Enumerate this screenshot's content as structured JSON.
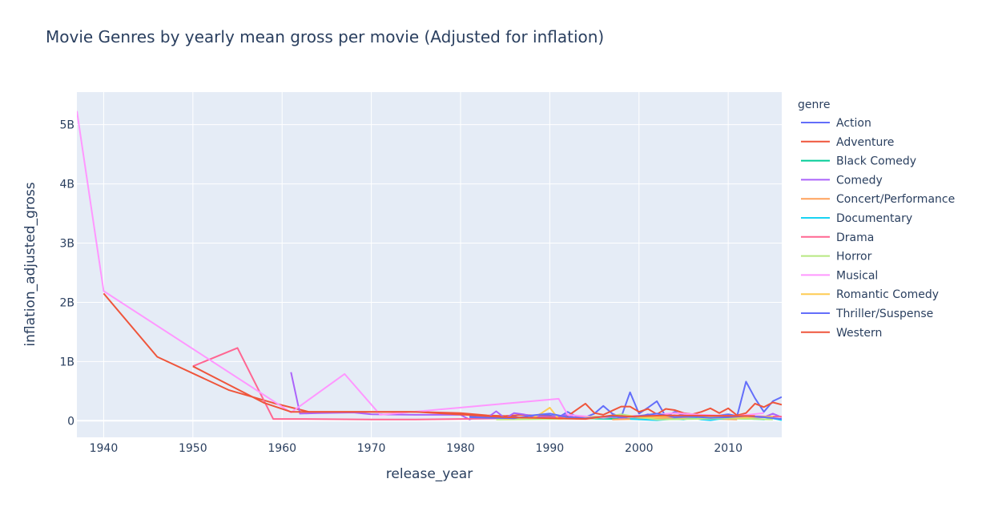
{
  "chart_data": {
    "type": "line",
    "title": "Movie Genres by yearly mean gross per movie (Adjusted for inflation)",
    "xlabel": "release_year",
    "ylabel": "inflation_adjusted_gross",
    "xlim": [
      1937,
      2016
    ],
    "ylim": [
      -280000000,
      5550000000
    ],
    "x_ticks": [
      1940,
      1950,
      1960,
      1970,
      1980,
      1990,
      2000,
      2010
    ],
    "y_ticks": [
      0,
      1000000000,
      2000000000,
      3000000000,
      4000000000,
      5000000000
    ],
    "y_tick_labels": [
      "0",
      "1B",
      "2B",
      "3B",
      "4B",
      "5B"
    ],
    "grid": true,
    "legend_title": "genre",
    "legend_placement": "right",
    "series": [
      {
        "name": "Action",
        "color": "#636efa",
        "x": [
          1981,
          1983,
          1985,
          1986,
          1987,
          1988,
          1989,
          1990,
          1991,
          1992,
          1993,
          1994,
          1995,
          1996,
          1997,
          1998,
          1999,
          2000,
          2001,
          2002,
          2003,
          2004,
          2005,
          2006,
          2007,
          2008,
          2009,
          2010,
          2011,
          2012,
          2013,
          2014,
          2015,
          2016
        ],
        "y": [
          80,
          60,
          50,
          70,
          40,
          60,
          100,
          90,
          60,
          150,
          70,
          60,
          120,
          250,
          120,
          60,
          480,
          120,
          220,
          330,
          70,
          150,
          90,
          80,
          100,
          60,
          90,
          110,
          80,
          660,
          380,
          150,
          330,
          400
        ]
      },
      {
        "name": "Adventure",
        "color": "#EF553B",
        "x": [
          1940,
          1946,
          1954,
          1959,
          1963,
          1967,
          1970,
          1975,
          1980,
          1983,
          1985,
          1987,
          1990,
          1992,
          1994,
          1995,
          1996,
          1997,
          1998,
          1999,
          2000,
          2001,
          2002,
          2003,
          2004,
          2005,
          2006,
          2007,
          2008,
          2009,
          2010,
          2011,
          2012,
          2013,
          2014,
          2015,
          2016
        ],
        "y": [
          2150,
          1080,
          520,
          300,
          150,
          150,
          150,
          150,
          130,
          90,
          80,
          100,
          70,
          80,
          290,
          130,
          100,
          170,
          240,
          240,
          150,
          200,
          110,
          200,
          180,
          130,
          110,
          150,
          210,
          130,
          210,
          90,
          130,
          290,
          230,
          310,
          270
        ]
      },
      {
        "name": "Black Comedy",
        "color": "#00cc96",
        "x": [
          1993,
          1998,
          2004,
          2010,
          2013
        ],
        "y": [
          40,
          30,
          50,
          40,
          30
        ]
      },
      {
        "name": "Comedy",
        "color": "#ab63fa",
        "x": [
          1961,
          1962,
          1964,
          1968,
          1970,
          1975,
          1980,
          1981,
          1982,
          1983,
          1984,
          1985,
          1986,
          1987,
          1988,
          1989,
          1990,
          1991,
          1992,
          1993,
          1994,
          1995,
          1996,
          1997,
          1998,
          1999,
          2000,
          2001,
          2002,
          2003,
          2004,
          2005,
          2006,
          2007,
          2008,
          2009,
          2010,
          2011,
          2012,
          2013,
          2014,
          2015,
          2016
        ],
        "y": [
          820,
          120,
          130,
          140,
          110,
          100,
          100,
          20,
          70,
          50,
          160,
          40,
          130,
          110,
          80,
          70,
          60,
          80,
          100,
          40,
          50,
          60,
          60,
          90,
          40,
          70,
          60,
          110,
          60,
          70,
          90,
          40,
          50,
          80,
          40,
          60,
          70,
          60,
          80,
          50,
          60,
          120,
          60
        ]
      },
      {
        "name": "Concert/Performance",
        "color": "#FFA15A",
        "x": [
          1997,
          2008,
          2009,
          2011
        ],
        "y": [
          20,
          60,
          30,
          20
        ]
      },
      {
        "name": "Documentary",
        "color": "#19d3f3",
        "x": [
          1999,
          2002,
          2003,
          2004,
          2005,
          2006,
          2007,
          2008,
          2009,
          2010,
          2011,
          2012,
          2013,
          2014,
          2015,
          2016
        ],
        "y": [
          30,
          10,
          20,
          30,
          20,
          50,
          20,
          10,
          30,
          40,
          50,
          40,
          30,
          20,
          40,
          10
        ]
      },
      {
        "name": "Drama",
        "color": "#FF6692",
        "x": [
          1950,
          1955,
          1959,
          1962,
          1970,
          1975,
          1980,
          1985,
          1990,
          1995,
          2000,
          2005,
          2010,
          2016
        ],
        "y": [
          920,
          1230,
          30,
          30,
          20,
          20,
          30,
          40,
          50,
          60,
          70,
          60,
          80,
          70
        ]
      },
      {
        "name": "Horror",
        "color": "#B6E880",
        "x": [
          1984,
          1990,
          1995,
          1998,
          2000,
          2002,
          2006,
          2010,
          2015
        ],
        "y": [
          20,
          30,
          40,
          110,
          60,
          20,
          30,
          40,
          20
        ]
      },
      {
        "name": "Musical",
        "color": "#FF97FF",
        "x": [
          1937,
          1940,
          1961,
          1967,
          1971,
          1991,
          1992,
          1996,
          1999,
          2001,
          2004,
          2007,
          2011,
          2014
        ],
        "y": [
          5230,
          2190,
          140,
          790,
          100,
          370,
          100,
          50,
          80,
          90,
          130,
          100,
          80,
          130
        ]
      },
      {
        "name": "Romantic Comedy",
        "color": "#FECB52",
        "x": [
          1985,
          1987,
          1988,
          1989,
          1990,
          1991,
          1992,
          1993,
          1995,
          1997,
          1999,
          2001,
          2003,
          2005,
          2008,
          2011,
          2015
        ],
        "y": [
          30,
          60,
          40,
          120,
          220,
          30,
          50,
          30,
          70,
          60,
          80,
          60,
          70,
          60,
          80,
          50,
          70
        ]
      },
      {
        "name": "Thriller/Suspense",
        "color": "#636efa",
        "x": [
          1981,
          1983,
          1986,
          1988,
          1990,
          1992,
          1994,
          1996,
          1998,
          2000,
          2002,
          2004,
          2006,
          2008,
          2010,
          2012,
          2014,
          2016
        ],
        "y": [
          60,
          50,
          40,
          90,
          120,
          60,
          40,
          70,
          60,
          80,
          120,
          60,
          70,
          50,
          60,
          80,
          60,
          30
        ]
      },
      {
        "name": "Western",
        "color": "#EF553B",
        "x": [
          1950,
          1958,
          1961,
          1975,
          1985,
          1994,
          1997,
          1999,
          2003,
          2013
        ],
        "y": [
          920,
          300,
          150,
          150,
          60,
          30,
          90,
          70,
          90,
          80
        ]
      }
    ]
  }
}
